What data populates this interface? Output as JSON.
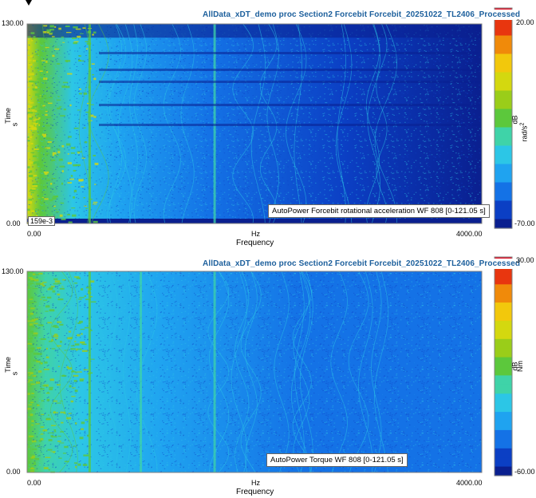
{
  "charts": [
    {
      "id": "top",
      "header": "AllData_xDT_demo proc  Section2 Forcebit  Forcebit_20251022_TL2406_Processed",
      "caption": "AutoPower Forcebit rotational acceleration WF 808 [0-121.05 s]",
      "cursor_value": "159e-3",
      "colorbar_unit_1": "dB",
      "colorbar_unit_2": "rad/s",
      "colorbar_unit_exp": "2",
      "colorbar_max": "20.00",
      "colorbar_min": "-70.00"
    },
    {
      "id": "bottom",
      "header": "AllData_xDT_demo proc  Section2 Forcebit  Forcebit_20251022_TL2406_Processed",
      "caption": "AutoPower Torque WF 808 [0-121.05 s]",
      "colorbar_unit_1": "dB",
      "colorbar_unit_2": "Nm",
      "colorbar_max": "30.00",
      "colorbar_min": "-60.00"
    }
  ],
  "axes": {
    "ylabel_top": "Time",
    "ylabel_unit": "s",
    "y_max_label": "130.00",
    "y_min_label": "0.00",
    "x_min_label": "0.00",
    "x_max_label": "4000.00",
    "x_unit": "Hz",
    "xlabel": "Frequency"
  },
  "chart_data": [
    {
      "type": "heatmap",
      "title": "AutoPower Forcebit rotational acceleration WF 808 [0-121.05 s]",
      "xlabel": "Frequency",
      "x_unit": "Hz",
      "ylabel": "Time",
      "y_unit": "s",
      "xlim": [
        0,
        4000
      ],
      "ylim": [
        0,
        130
      ],
      "data_time_range": [
        0,
        121.05
      ],
      "colorbar": {
        "unit": "dB rad/s2",
        "min": -70,
        "max": 20
      },
      "colormap": [
        "#0a1f8f",
        "#0b3fc4",
        "#1472e6",
        "#1fa3f0",
        "#2cc6e6",
        "#3fd3a8",
        "#5cc83c",
        "#9acd19",
        "#d4d80f",
        "#f2c80c",
        "#f08a0a",
        "#e8360f",
        "#e01a2e"
      ],
      "cursor_value": 0.159,
      "description_bands_hz": [
        550,
        1650
      ]
    },
    {
      "type": "heatmap",
      "title": "AutoPower Torque WF 808 [0-121.05 s]",
      "xlabel": "Frequency",
      "x_unit": "Hz",
      "ylabel": "Time",
      "y_unit": "s",
      "xlim": [
        0,
        4000
      ],
      "ylim": [
        0,
        130
      ],
      "data_time_range": [
        0,
        121.05
      ],
      "colorbar": {
        "unit": "dB Nm",
        "min": -60,
        "max": 30
      },
      "colormap": [
        "#0a1f8f",
        "#0b3fc4",
        "#1472e6",
        "#1fa3f0",
        "#2cc6e6",
        "#3fd3a8",
        "#5cc83c",
        "#9acd19",
        "#d4d80f",
        "#f2c80c",
        "#f08a0a",
        "#e8360f",
        "#e01a2e"
      ],
      "description_bands_hz": [
        550,
        1000,
        1650
      ]
    }
  ]
}
